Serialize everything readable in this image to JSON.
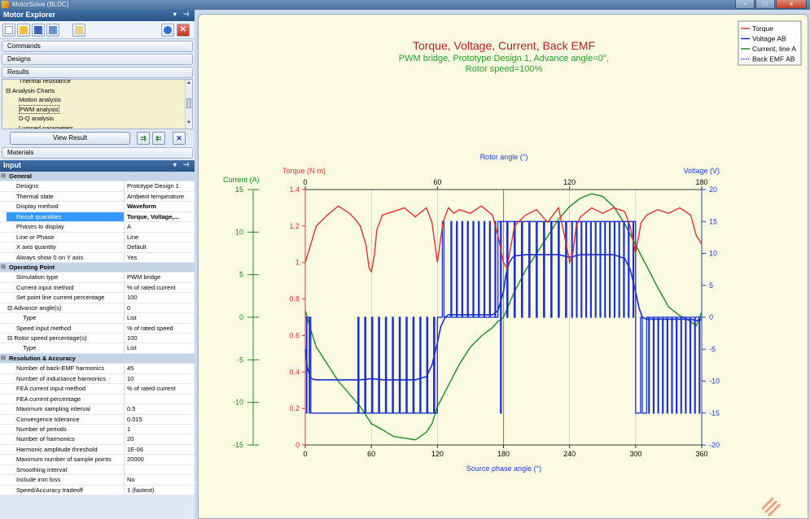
{
  "window": {
    "title": "MotorSolve (BLDC)",
    "min": "–",
    "max": "□",
    "close": "x"
  },
  "explorer": {
    "title": "Motor Explorer",
    "sections": [
      "Commands",
      "Designs",
      "Results"
    ],
    "tree": [
      {
        "label": "Thermal resistance",
        "indent": 2
      },
      {
        "label": "Analysis Charts",
        "indent": 0,
        "expander": "⊟"
      },
      {
        "label": "Motion analysis",
        "indent": 2
      },
      {
        "label": "PWM analysis",
        "indent": 2,
        "selected": true
      },
      {
        "label": "D-Q analysis",
        "indent": 2
      },
      {
        "label": "Lumped parameters",
        "indent": 2
      }
    ],
    "view_result": "View Result",
    "materials": "Materials"
  },
  "input": {
    "title": "Input",
    "rows": [
      {
        "type": "cat",
        "name": "General"
      },
      {
        "name": "Designs",
        "value": "Prototype Design 1"
      },
      {
        "name": "Thermal state",
        "value": "Ambient temperature"
      },
      {
        "name": "Display method",
        "value": "Waveform",
        "bold": true
      },
      {
        "name": "Result quantities",
        "value": "Torque, Voltage,...",
        "bold": true,
        "selected": true
      },
      {
        "name": "Phases to display",
        "value": "A"
      },
      {
        "name": "Line or Phase",
        "value": "Line"
      },
      {
        "name": "X axis quantity",
        "value": "Default"
      },
      {
        "name": "Always show 0 on Y axis",
        "value": "Yes"
      },
      {
        "type": "cat",
        "name": "Operating Point"
      },
      {
        "name": "Simulation type",
        "value": "PWM bridge"
      },
      {
        "name": "Current input method",
        "value": "% of rated current"
      },
      {
        "name": "Set point line current percentage",
        "value": "100"
      },
      {
        "name": "Advance angle(s)",
        "value": "0",
        "expander": "⊟"
      },
      {
        "name": "Type",
        "value": "List",
        "sub": true
      },
      {
        "name": "Speed input method",
        "value": "% of rated speed"
      },
      {
        "name": "Rotor speed percentage(s)",
        "value": "100",
        "expander": "⊟"
      },
      {
        "name": "Type",
        "value": "List",
        "sub": true
      },
      {
        "type": "cat",
        "name": "Resolution & Accuracy"
      },
      {
        "name": "Number of back-EMF harmonics",
        "value": "45"
      },
      {
        "name": "Number of inductance harmonics",
        "value": "10"
      },
      {
        "name": "FEA current input method",
        "value": "% of rated current"
      },
      {
        "name": "FEA current percentage",
        "value": ""
      },
      {
        "name": "Maximum sampling interval",
        "value": "0.5"
      },
      {
        "name": "Convergence tolerance",
        "value": "0.015"
      },
      {
        "name": "Number of periods",
        "value": "1"
      },
      {
        "name": "Number of harmonics",
        "value": "20"
      },
      {
        "name": "Harmonic amplitude threshold",
        "value": "1E-06"
      },
      {
        "name": "Maximum number of sample points",
        "value": "20000"
      },
      {
        "name": "Smoothing interval",
        "value": ""
      },
      {
        "name": "Include iron loss",
        "value": "No"
      },
      {
        "name": "Speed/Accuracy tradeoff",
        "value": "1 (fastest)"
      }
    ]
  },
  "chart_data": {
    "type": "line",
    "title": "Torque, Voltage, Current, Back EMF",
    "subtitle": [
      "PWM bridge, Prototype Design 1, Advance angle=0°,",
      "Rotor speed=100%"
    ],
    "xlabel": "Source phase angle (°)",
    "x2label": "Rotor angle (°)",
    "xticks": [
      0,
      60,
      120,
      180,
      240,
      300,
      360
    ],
    "x2ticks": [
      0,
      60,
      120,
      180
    ],
    "xlim": [
      0,
      360
    ],
    "torque_axis": {
      "label": "Torque (N·m)",
      "ticks": [
        "0",
        "0.2",
        "0.4",
        "0.6",
        "0.8",
        "1",
        "1.2",
        "1.4"
      ],
      "lim": [
        0,
        1.4
      ]
    },
    "current_axis": {
      "label": "Current (A)",
      "ticks": [
        "-15",
        "-10",
        "-5",
        "0",
        "5",
        "10",
        "15"
      ],
      "lim": [
        -15,
        15
      ]
    },
    "voltage_axis": {
      "label": "Voltage (V)",
      "ticks": [
        "-20",
        "-15",
        "-10",
        "-5",
        "0",
        "5",
        "10",
        "15",
        "20"
      ],
      "lim": [
        -20,
        20
      ]
    },
    "legend": {
      "position": "top-right",
      "entries": [
        "Torque",
        "Voltage AB",
        "Current, line A",
        "Back EMF AB"
      ]
    },
    "colors": {
      "torque": "#e03030",
      "voltage": "#1a2fd0",
      "current": "#1f8a1f",
      "emf": "#1a2fd0",
      "title": "#b02020",
      "subtitle": "#2a9a2a",
      "axis_blue": "#2040d0"
    },
    "series": [
      {
        "name": "Torque",
        "axis": "torque",
        "x": [
          0,
          5,
          10,
          20,
          30,
          40,
          45,
          50,
          55,
          58,
          60,
          63,
          65,
          70,
          80,
          90,
          100,
          110,
          115,
          120,
          125,
          130,
          135,
          140,
          150,
          160,
          170,
          175,
          180,
          183,
          187,
          190,
          200,
          210,
          220,
          230,
          237,
          240,
          243,
          246,
          250,
          260,
          270,
          280,
          290,
          295,
          300,
          305,
          310,
          320,
          330,
          340,
          350,
          355,
          360
        ],
        "y": [
          1.0,
          1.1,
          1.2,
          1.26,
          1.31,
          1.27,
          1.24,
          1.2,
          1.1,
          0.97,
          0.95,
          1.05,
          1.18,
          1.26,
          1.28,
          1.3,
          1.25,
          1.3,
          1.22,
          1.0,
          1.22,
          1.3,
          1.27,
          1.29,
          1.27,
          1.31,
          1.26,
          1.15,
          1.0,
          0.97,
          1.1,
          1.2,
          1.26,
          1.29,
          1.22,
          1.3,
          1.1,
          1.0,
          1.05,
          1.2,
          1.25,
          1.3,
          1.27,
          1.3,
          1.28,
          1.2,
          1.05,
          1.22,
          1.26,
          1.29,
          1.27,
          1.3,
          1.26,
          1.15,
          1.1
        ]
      },
      {
        "name": "Current, line A",
        "axis": "current",
        "x": [
          0,
          5,
          10,
          20,
          30,
          40,
          50,
          55,
          60,
          70,
          80,
          90,
          100,
          110,
          115,
          120,
          130,
          140,
          150,
          160,
          170,
          175,
          180,
          190,
          200,
          210,
          220,
          230,
          240,
          250,
          260,
          270,
          280,
          290,
          300,
          310,
          320,
          330,
          340,
          350,
          355,
          360
        ],
        "y": [
          0.8,
          -1.5,
          -3.5,
          -5.5,
          -7.5,
          -9,
          -10.5,
          -11.5,
          -12.5,
          -13.2,
          -14,
          -14.2,
          -14.4,
          -13.5,
          -12.5,
          -10.5,
          -8,
          -5.5,
          -3.5,
          -2.2,
          -1.2,
          -0.5,
          0,
          3,
          5.5,
          7.5,
          9.5,
          11.5,
          13,
          14,
          14.5,
          14.2,
          13,
          11,
          8.5,
          6,
          3.5,
          1.2,
          0.2,
          -0.5,
          -1,
          0.6
        ]
      },
      {
        "name": "Back EMF AB",
        "axis": "voltage",
        "x": [
          0,
          2,
          5,
          7,
          10,
          50,
          60,
          70,
          100,
          110,
          115,
          120,
          123,
          127,
          130,
          160,
          170,
          175,
          180,
          182,
          185,
          188,
          190,
          200,
          230,
          240,
          250,
          280,
          290,
          295,
          300,
          303,
          306,
          310,
          340,
          350,
          355,
          360
        ],
        "y": [
          -5,
          -8,
          -9.5,
          -9.7,
          -9.8,
          -9.8,
          -9.6,
          -9.8,
          -9.8,
          -9.3,
          -7.5,
          -4,
          -1.5,
          0,
          0.4,
          0.4,
          0.4,
          1,
          4,
          6.5,
          8.5,
          9.3,
          9.6,
          9.8,
          9.8,
          9.4,
          9.8,
          9.8,
          9.2,
          7.5,
          4,
          1.5,
          0,
          -0.3,
          -0.3,
          -0.3,
          -0.5,
          -0.4
        ]
      },
      {
        "name": "Voltage AB",
        "axis": "voltage",
        "pwm": true,
        "segments": [
          {
            "from": 0,
            "to": 5,
            "level": 0,
            "switch_to": -15,
            "pulses": 2
          },
          {
            "from": 5,
            "to": 45,
            "level": -15,
            "switch_to": 0,
            "pulses": 0
          },
          {
            "from": 45,
            "to": 120,
            "level": -15,
            "switch_to": 0,
            "pulses": 12
          },
          {
            "from": 120,
            "to": 130,
            "level": 0,
            "switch_to": 15,
            "pulses": 1
          },
          {
            "from": 130,
            "to": 175,
            "level": 0,
            "switch_to": 15,
            "pulses": 9
          },
          {
            "from": 175,
            "to": 180,
            "level": 15,
            "switch_to": -15,
            "pulses": 1
          },
          {
            "from": 180,
            "to": 240,
            "level": 15,
            "switch_to": 0,
            "pulses": 9
          },
          {
            "from": 240,
            "to": 300,
            "level": 15,
            "switch_to": 0,
            "pulses": 14
          },
          {
            "from": 300,
            "to": 310,
            "level": -15,
            "switch_to": 0,
            "pulses": 1
          },
          {
            "from": 310,
            "to": 360,
            "level": 0,
            "switch_to": -15,
            "pulses": 12
          }
        ]
      }
    ]
  }
}
